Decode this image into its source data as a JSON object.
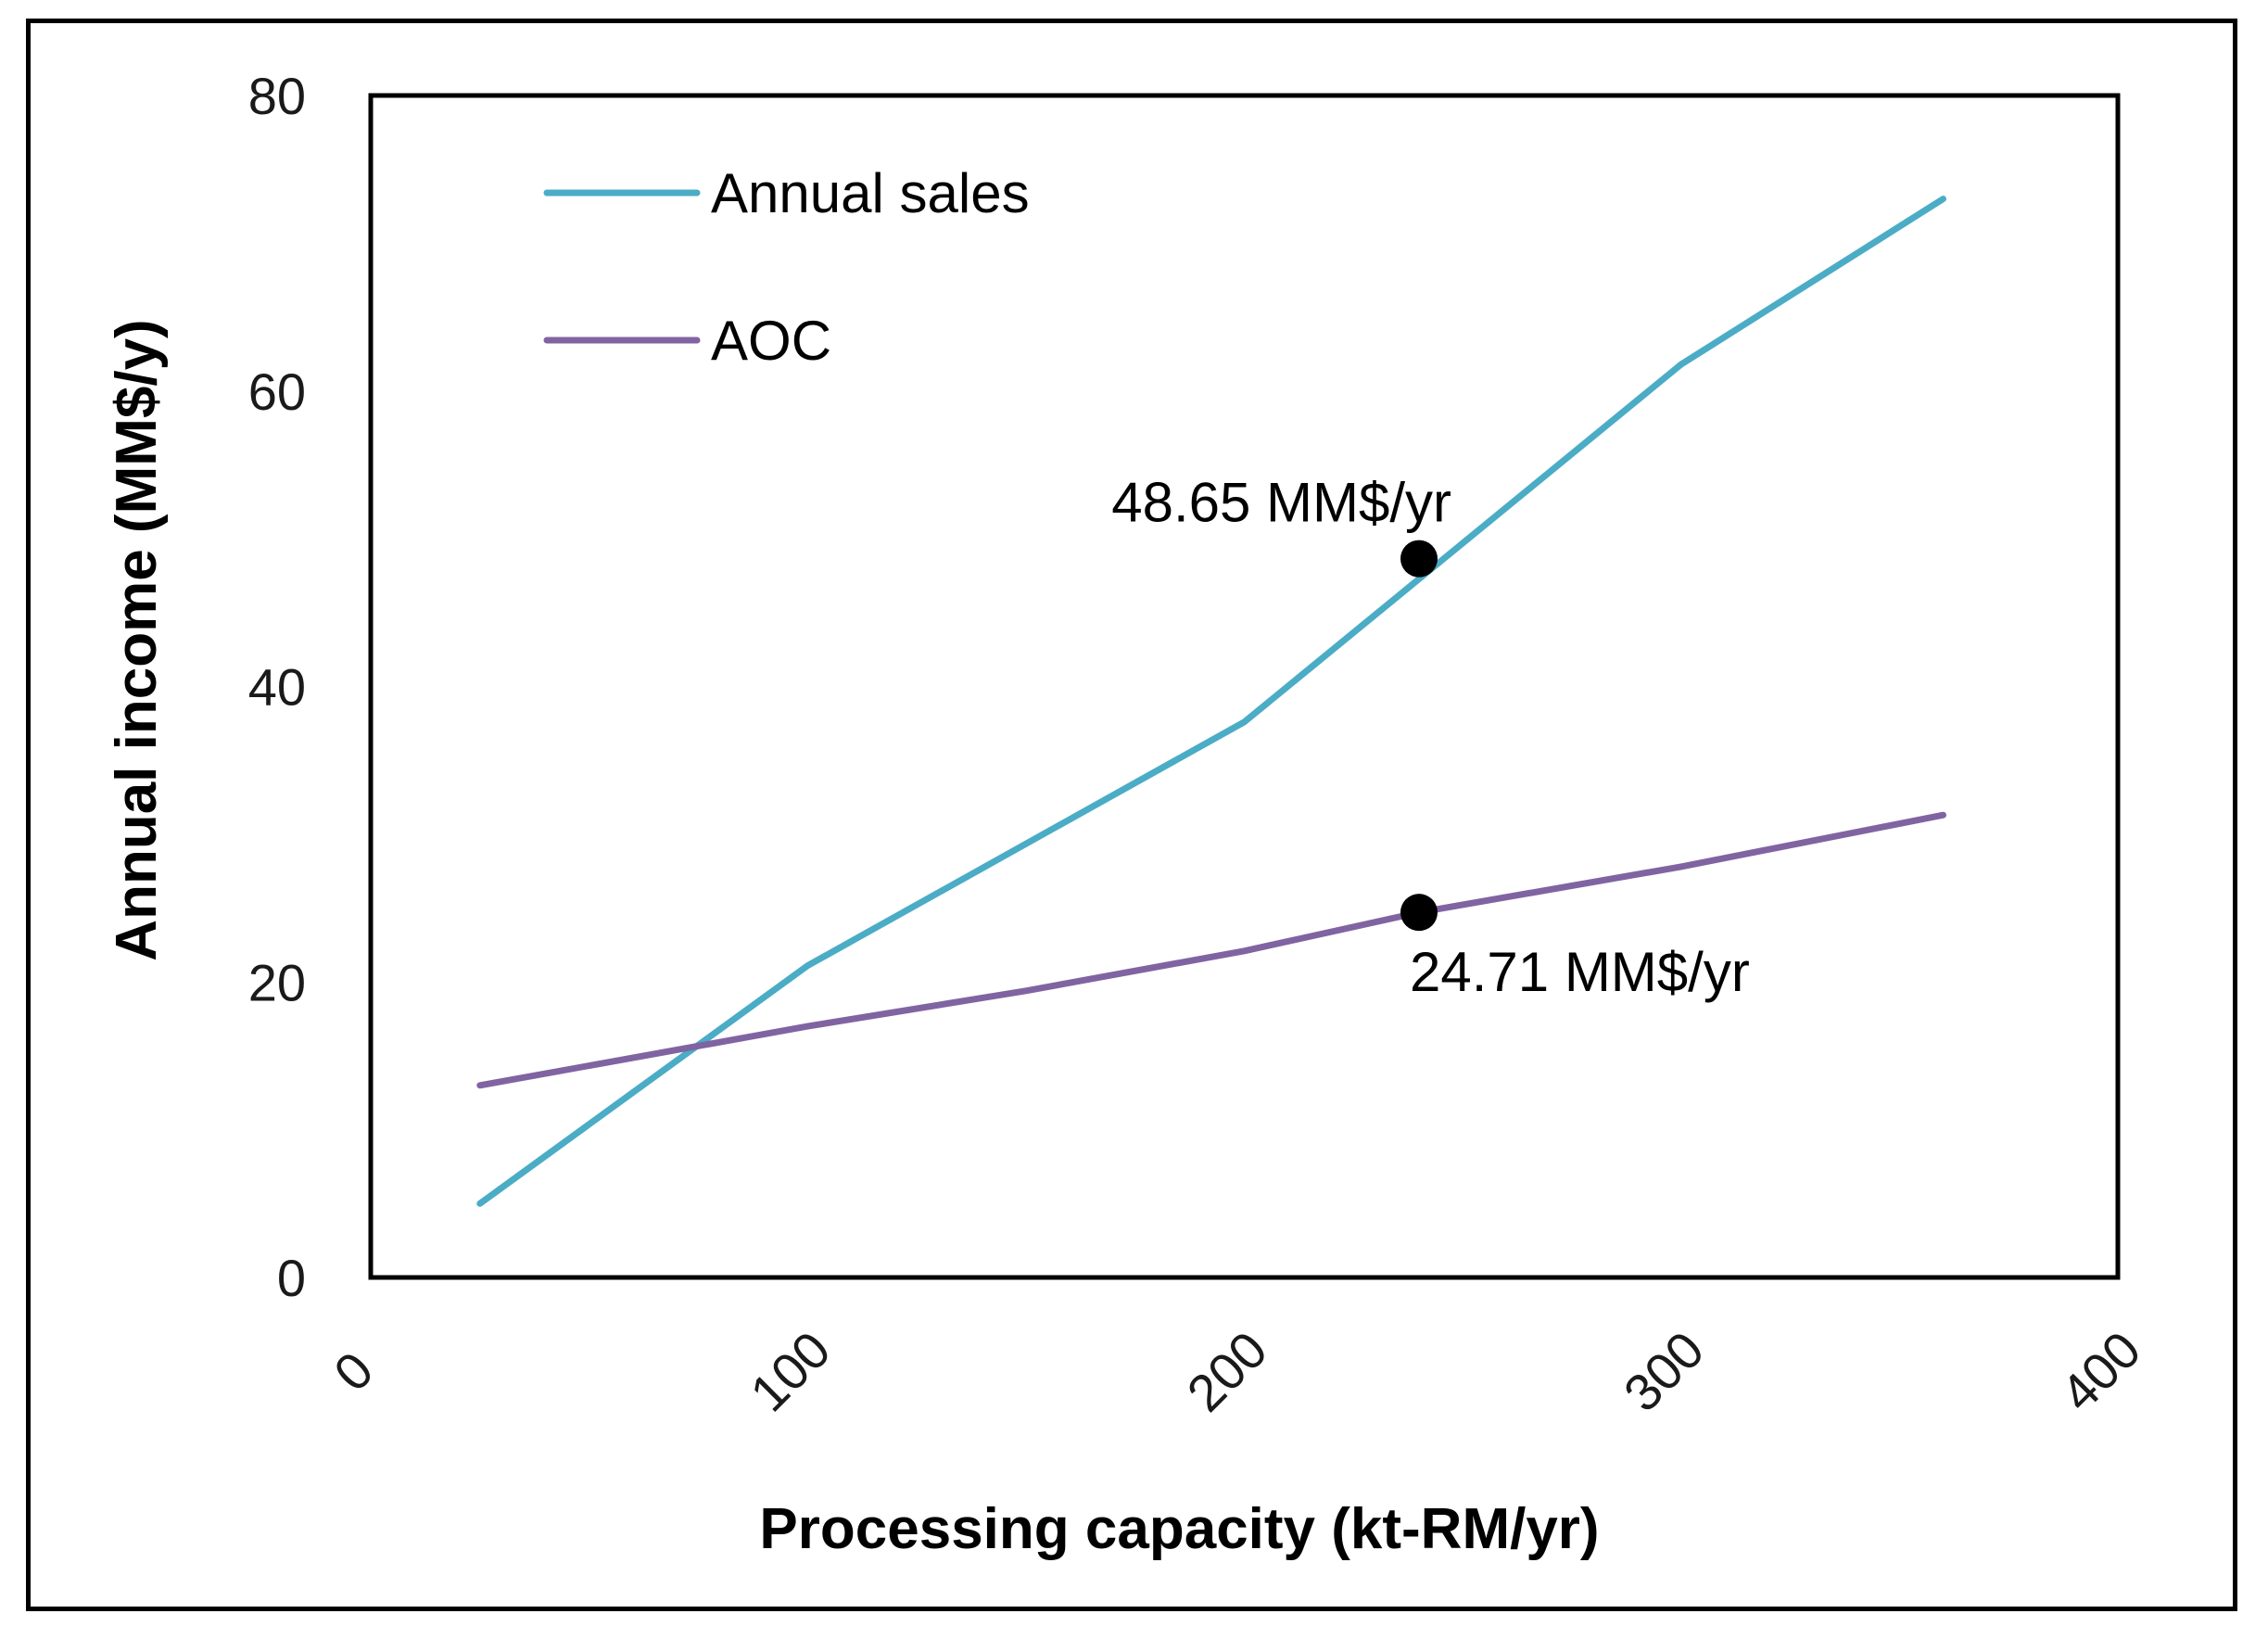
{
  "chart_data": {
    "type": "line",
    "title": "",
    "xlabel": "Processing capacity (kt-RM/yr)",
    "ylabel": "Annual income (MM$/y)",
    "xlim": [
      0,
      400
    ],
    "ylim": [
      0,
      80
    ],
    "xticks": [
      "0",
      "100",
      "200",
      "300",
      "400"
    ],
    "yticks": [
      "0",
      "20",
      "40",
      "60",
      "80"
    ],
    "legend_position": "top-left",
    "series": [
      {
        "name": "Annual sales",
        "color": "#4bacc6",
        "x": [
          25,
          100,
          200,
          300,
          360
        ],
        "y": [
          5,
          21.1,
          37.6,
          61.8,
          73.0
        ]
      },
      {
        "name": "AOC",
        "color": "#8064a2",
        "x": [
          25,
          100,
          150,
          200,
          240,
          300,
          360
        ],
        "y": [
          13,
          17,
          19.4,
          22.1,
          24.71,
          27.8,
          31.3
        ]
      }
    ],
    "markers": [
      {
        "series": "Annual sales",
        "x": 240,
        "y": 48.65,
        "label": "48.65 MM$/yr",
        "label_position": "above-left"
      },
      {
        "series": "AOC",
        "x": 240,
        "y": 24.71,
        "label": "24.71 MM$/yr",
        "label_position": "below-right"
      }
    ]
  }
}
